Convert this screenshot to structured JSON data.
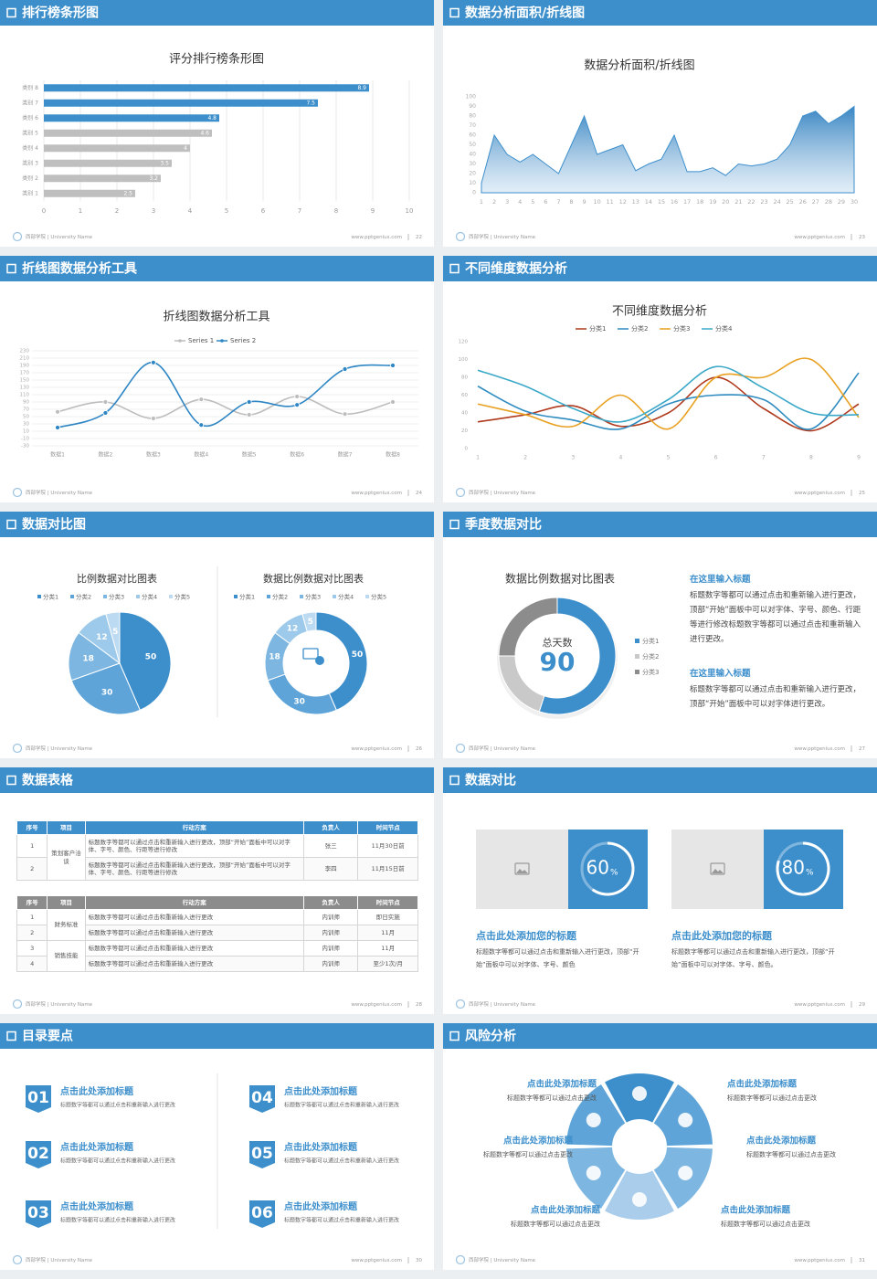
{
  "slides": [
    {
      "title": "排行榜条形图",
      "footer": {
        "org": "西部学院 | University Name",
        "site": "www.pptgenius.com",
        "page": "22"
      },
      "content": {
        "type": "bar",
        "orientation": "horizontal",
        "title": "评分排行榜条形图",
        "categories": [
          "类别 8",
          "类别 7",
          "类别 6",
          "类别 5",
          "类别 4",
          "类别 3",
          "类别 2",
          "类别 1"
        ],
        "values": [
          8.9,
          7.5,
          4.8,
          4.6,
          4,
          3.5,
          3.2,
          2.5
        ],
        "colors": [
          "#3d8fcc",
          "#3d8fcc",
          "#3d8fcc",
          "#bfbfbf",
          "#bfbfbf",
          "#bfbfbf",
          "#bfbfbf",
          "#bfbfbf"
        ],
        "xlim": [
          0,
          10
        ],
        "xticks": [
          0,
          1,
          2,
          3,
          4,
          5,
          6,
          7,
          8,
          9,
          10
        ],
        "grid": true
      }
    },
    {
      "title": "数据分析面积/折线图",
      "footer": {
        "org": "西部学院 | University Name",
        "site": "www.pptgenius.com",
        "page": "23"
      },
      "content": {
        "type": "area",
        "title": "数据分析面积/折线图",
        "x": [
          1,
          2,
          3,
          4,
          5,
          6,
          7,
          8,
          9,
          10,
          11,
          12,
          13,
          14,
          15,
          16,
          17,
          18,
          19,
          20,
          21,
          22,
          23,
          24,
          25,
          26,
          27,
          28,
          29,
          30
        ],
        "values": [
          10,
          60,
          40,
          32,
          40,
          30,
          20,
          50,
          80,
          40,
          45,
          50,
          23,
          30,
          35,
          60,
          22,
          22,
          26,
          18,
          30,
          28,
          30,
          35,
          50,
          80,
          85,
          72,
          80,
          90
        ],
        "color": "#3d8fcc",
        "xlim": [
          1,
          30
        ],
        "xticks": [
          1,
          2,
          3,
          4,
          5,
          6,
          7,
          8,
          9,
          10,
          11,
          12,
          13,
          14,
          15,
          16,
          17,
          18,
          19,
          20,
          21,
          22,
          23,
          24,
          25,
          26,
          27,
          28,
          29,
          30
        ],
        "ylim": [
          0,
          100
        ],
        "yticks": [
          0,
          10,
          20,
          30,
          40,
          50,
          60,
          70,
          80,
          90,
          100
        ],
        "grid": false
      }
    },
    {
      "title": "折线图数据分析工具",
      "footer": {
        "org": "西部学院 | University Name",
        "site": "www.pptgenius.com",
        "page": "24"
      },
      "content": {
        "type": "line",
        "smooth": true,
        "title": "折线图数据分析工具",
        "categories": [
          "数据1",
          "数据2",
          "数据3",
          "数据4",
          "数据5",
          "数据6",
          "数据7",
          "数据8"
        ],
        "series": [
          {
            "name": "Series 1",
            "color": "#bdbdbd",
            "values": [
              63,
              90,
              45,
              97,
              55,
              105,
              57,
              90
            ]
          },
          {
            "name": "Series 2",
            "color": "#2f86c4",
            "values": [
              20,
              60,
              198,
              27,
              90,
              82,
              180,
              190
            ]
          }
        ],
        "ylim": [
          -30,
          230
        ],
        "yticks": [
          -30,
          -10,
          10,
          30,
          50,
          70,
          90,
          110,
          130,
          150,
          170,
          190,
          210,
          230
        ],
        "grid": true,
        "legend": "top"
      }
    },
    {
      "title": "不同维度数据分析",
      "footer": {
        "org": "西部学院 | University Name",
        "site": "www.pptgenius.com",
        "page": "25"
      },
      "content": {
        "type": "line",
        "smooth": true,
        "title": "不同维度数据分析",
        "x": [
          1,
          2,
          3,
          4,
          5,
          6,
          7,
          8,
          9
        ],
        "xlim": [
          1,
          9
        ],
        "xticks": [
          1,
          2,
          3,
          4,
          5,
          6,
          7,
          8,
          9
        ],
        "series": [
          {
            "name": "分类1",
            "color": "#b03a1e",
            "values": [
              30,
              38,
              48,
              25,
              40,
              80,
              45,
              20,
              50
            ]
          },
          {
            "name": "分类2",
            "color": "#2e8bc0",
            "values": [
              70,
              42,
              32,
              22,
              50,
              60,
              55,
              22,
              85
            ]
          },
          {
            "name": "分类3",
            "color": "#e8a020",
            "values": [
              50,
              38,
              25,
              60,
              22,
              80,
              80,
              100,
              35
            ]
          },
          {
            "name": "分类4",
            "color": "#3aa8c8",
            "values": [
              88,
              70,
              45,
              30,
              55,
              92,
              68,
              40,
              38
            ]
          }
        ],
        "ylim": [
          0,
          120
        ],
        "yticks": [
          0,
          20,
          40,
          60,
          80,
          100,
          120
        ],
        "grid": false,
        "legend": "top"
      }
    },
    {
      "title": "数据对比图",
      "footer": {
        "org": "西部学院 | University Name",
        "site": "www.pptgenius.com",
        "page": "26"
      },
      "content": {
        "type": "pies",
        "charts": [
          {
            "type": "pie",
            "title": "比例数据对比图表",
            "categories": [
              "分类1",
              "分类2",
              "分类3",
              "分类4",
              "分类5"
            ],
            "values": [
              50,
              30,
              18,
              12,
              5
            ],
            "colors": [
              "#3d8fcc",
              "#5ea4d8",
              "#7db7e1",
              "#9dc9ea",
              "#bcdaf1"
            ]
          },
          {
            "type": "donut",
            "title": "数据比例数据对比图表",
            "categories": [
              "分类1",
              "分类2",
              "分类3",
              "分类4",
              "分类5"
            ],
            "values": [
              50,
              30,
              18,
              12,
              5
            ],
            "colors": [
              "#3d8fcc",
              "#5ea4d8",
              "#7db7e1",
              "#9dc9ea",
              "#bcdaf1"
            ]
          }
        ]
      }
    },
    {
      "title": "季度数据对比",
      "footer": {
        "org": "西部学院 | University Name",
        "site": "www.pptgenius.com",
        "page": "27"
      },
      "content": {
        "type": "donut",
        "title": "数据比例数据对比图表",
        "center_label": "总天数",
        "center_value": 90,
        "categories": [
          "分类1",
          "分类2",
          "分类3"
        ],
        "values": [
          55,
          20,
          25
        ],
        "colors": [
          "#3d8fcc",
          "#c9c9c9",
          "#8c8c8c"
        ],
        "notes": [
          {
            "heading": "在这里输入标题",
            "text": "标题数字等都可以通过点击和重新输入进行更改，顶部“开始”面板中可以对字体、字号、颜色、行距等进行修改标题数字等都可以通过点击和重新输入进行更改。"
          },
          {
            "heading": "在这里输入标题",
            "text": "标题数字等都可以通过点击和重新输入进行更改，顶部“开始”面板中可以对字体进行更改。"
          }
        ]
      }
    },
    {
      "title": "数据表格",
      "footer": {
        "org": "西部学院 | University Name",
        "site": "www.pptgenius.com",
        "page": "28"
      },
      "content": {
        "type": "tables",
        "tables": [
          {
            "header_color": "#3d8fcc",
            "header": [
              "序号",
              "项目",
              "行动方案",
              "负责人",
              "时间节点"
            ],
            "groups": [
              {
                "item": "策划客户洽谈",
                "rows": [
                  [
                    "1",
                    "标题数字等都可以通过点击和重新输入进行更改，顶部“开始”面板中可以对字体、字号、颜色、行距等进行修改",
                    "张三",
                    "11月30日前"
                  ],
                  [
                    "2",
                    "标题数字等都可以通过点击和重新输入进行更改，顶部“开始”面板中可以对字体、字号、颜色、行距等进行修改",
                    "李四",
                    "11月15日前"
                  ]
                ]
              }
            ]
          },
          {
            "header_color": "#8c8c8c",
            "header": [
              "序号",
              "项目",
              "行动方案",
              "负责人",
              "时间节点"
            ],
            "groups": [
              {
                "item": "财务标准",
                "rows": [
                  [
                    "1",
                    "标题数字等都可以通过点击和重新输入进行更改",
                    "内训师",
                    "即日实施"
                  ],
                  [
                    "2",
                    "标题数字等都可以通过点击和重新输入进行更改",
                    "内训师",
                    "11月"
                  ]
                ]
              },
              {
                "item": "销售技能",
                "rows": [
                  [
                    "3",
                    "标题数字等都可以通过点击和重新输入进行更改",
                    "内训师",
                    "11月"
                  ],
                  [
                    "4",
                    "标题数字等都可以通过点击和重新输入进行更改",
                    "内训师",
                    "至少1次/月"
                  ]
                ]
              }
            ]
          }
        ]
      }
    },
    {
      "title": "数据对比",
      "footer": {
        "org": "西部学院 | University Name",
        "site": "www.pptgenius.com",
        "page": "29"
      },
      "content": {
        "type": "cards",
        "cards": [
          {
            "value": 60,
            "unit": "%",
            "title": "点击此处添加您的标题",
            "text": "标题数字等都可以通过点击和重新输入进行更改，顶部“开始”面板中可以对字体、字号、颜色"
          },
          {
            "value": 80,
            "unit": "%",
            "title": "点击此处添加您的标题",
            "text": "标题数字等都可以通过点击和重新输入进行更改，顶部“开始”面板中可以对字体、字号、颜色。"
          }
        ]
      }
    },
    {
      "title": "目录要点",
      "footer": {
        "org": "西部学院 | University Name",
        "site": "www.pptgenius.com",
        "page": "30"
      },
      "content": {
        "type": "list",
        "items": [
          {
            "number": "01",
            "title": "点击此处添加标题",
            "text": "标题数字等都可以通过点击和重新输入进行更改"
          },
          {
            "number": "02",
            "title": "点击此处添加标题",
            "text": "标题数字等都可以通过点击和重新输入进行更改"
          },
          {
            "number": "03",
            "title": "点击此处添加标题",
            "text": "标题数字等都可以通过点击和重新输入进行更改"
          },
          {
            "number": "04",
            "title": "点击此处添加标题",
            "text": "标题数字等都可以通过点击和重新输入进行更改"
          },
          {
            "number": "05",
            "title": "点击此处添加标题",
            "text": "标题数字等都可以通过点击和重新输入进行更改"
          },
          {
            "number": "06",
            "title": "点击此处添加标题",
            "text": "标题数字等都可以通过点击和重新输入进行更改"
          }
        ]
      }
    },
    {
      "title": "风险分析",
      "footer": {
        "org": "西部学院 | University Name",
        "site": "www.pptgenius.com",
        "page": "31"
      },
      "content": {
        "type": "cycle",
        "items": [
          {
            "title": "点击此处添加标题",
            "text": "标题数字等都可以通过点击更改"
          },
          {
            "title": "点击此处添加标题",
            "text": "标题数字等都可以通过点击更改"
          },
          {
            "title": "点击此处添加标题",
            "text": "标题数字等都可以通过点击更改"
          },
          {
            "title": "点击此处添加标题",
            "text": "标题数字等都可以通过点击更改"
          },
          {
            "title": "点击此处添加标题",
            "text": "标题数字等都可以通过点击更改"
          },
          {
            "title": "点击此处添加标题",
            "text": "标题数字等都可以通过点击更改"
          }
        ]
      }
    }
  ]
}
